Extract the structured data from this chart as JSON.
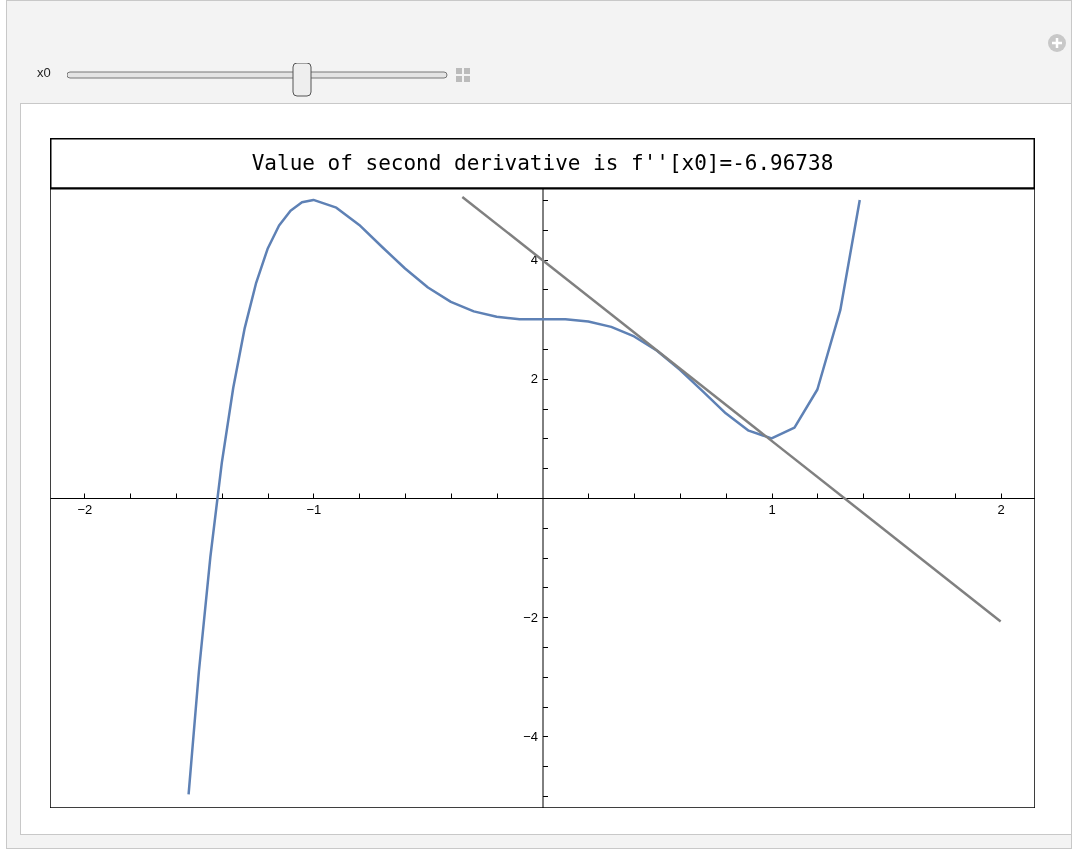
{
  "chart_data": {
    "type": "line",
    "title": "Value of second derivative is f''[x0]=-6.96738",
    "annotations": [
      "x0"
    ],
    "xlim": [
      -2.15,
      2.15
    ],
    "ylim": [
      -5.2,
      5.2
    ],
    "xticks": [
      {
        "value": -2,
        "label": "−2"
      },
      {
        "value": -1.8,
        "label": null
      },
      {
        "value": -1.6,
        "label": null
      },
      {
        "value": -1.4,
        "label": null
      },
      {
        "value": -1.2,
        "label": null
      },
      {
        "value": -1,
        "label": "−1"
      },
      {
        "value": -0.8,
        "label": null
      },
      {
        "value": -0.6,
        "label": null
      },
      {
        "value": -0.4,
        "label": null
      },
      {
        "value": -0.2,
        "label": null
      },
      {
        "value": 0.2,
        "label": null
      },
      {
        "value": 0.4,
        "label": null
      },
      {
        "value": 0.6,
        "label": null
      },
      {
        "value": 0.8,
        "label": null
      },
      {
        "value": 1,
        "label": "1"
      },
      {
        "value": 1.2,
        "label": null
      },
      {
        "value": 1.4,
        "label": null
      },
      {
        "value": 1.6,
        "label": null
      },
      {
        "value": 1.8,
        "label": null
      },
      {
        "value": 2,
        "label": "2"
      }
    ],
    "yticks": [
      {
        "value": -5,
        "label": null
      },
      {
        "value": -4.5,
        "label": null
      },
      {
        "value": -4,
        "label": "−4"
      },
      {
        "value": -3.5,
        "label": null
      },
      {
        "value": -3,
        "label": null
      },
      {
        "value": -2.5,
        "label": null
      },
      {
        "value": -2,
        "label": "−2"
      },
      {
        "value": -1.5,
        "label": null
      },
      {
        "value": -1,
        "label": null
      },
      {
        "value": -0.5,
        "label": null
      },
      {
        "value": 0.5,
        "label": null
      },
      {
        "value": 1,
        "label": null
      },
      {
        "value": 1.5,
        "label": null
      },
      {
        "value": 2,
        "label": "2"
      },
      {
        "value": 2.5,
        "label": null
      },
      {
        "value": 3,
        "label": null
      },
      {
        "value": 3.5,
        "label": null
      },
      {
        "value": 4,
        "label": "4"
      },
      {
        "value": 4.5,
        "label": null
      },
      {
        "value": 5,
        "label": null
      }
    ],
    "grid": false,
    "marker": "none",
    "line_style": "solid",
    "series": [
      {
        "color": "#5e81b5",
        "x": [
          -1.545,
          -1.5,
          -1.45,
          -1.4,
          -1.35,
          -1.3,
          -1.25,
          -1.2,
          -1.15,
          -1.1,
          -1.05,
          -1,
          -0.9,
          -0.8,
          -0.7,
          -0.6,
          -0.5,
          -0.4,
          -0.3,
          -0.2,
          -0.1,
          0,
          0.1,
          0.2,
          0.3,
          0.4,
          0.5,
          0.6,
          0.7,
          0.8,
          0.9,
          1,
          1.1,
          1.2,
          1.3,
          1.385
        ],
        "values": [
          -4.97,
          -2.91,
          -0.99,
          0.59,
          1.85,
          2.85,
          3.61,
          4.18,
          4.57,
          4.82,
          4.96,
          5,
          4.87,
          4.58,
          4.21,
          3.85,
          3.53,
          3.29,
          3.13,
          3.04,
          3.0,
          3,
          3.0,
          2.96,
          2.87,
          2.71,
          2.47,
          2.15,
          1.79,
          1.42,
          1.13,
          1,
          1.18,
          1.82,
          3.15,
          5.0
        ]
      },
      {
        "color": "#808080",
        "x": [
          -0.35,
          2
        ],
        "values": [
          5.05,
          -2.07
        ]
      }
    ]
  }
}
